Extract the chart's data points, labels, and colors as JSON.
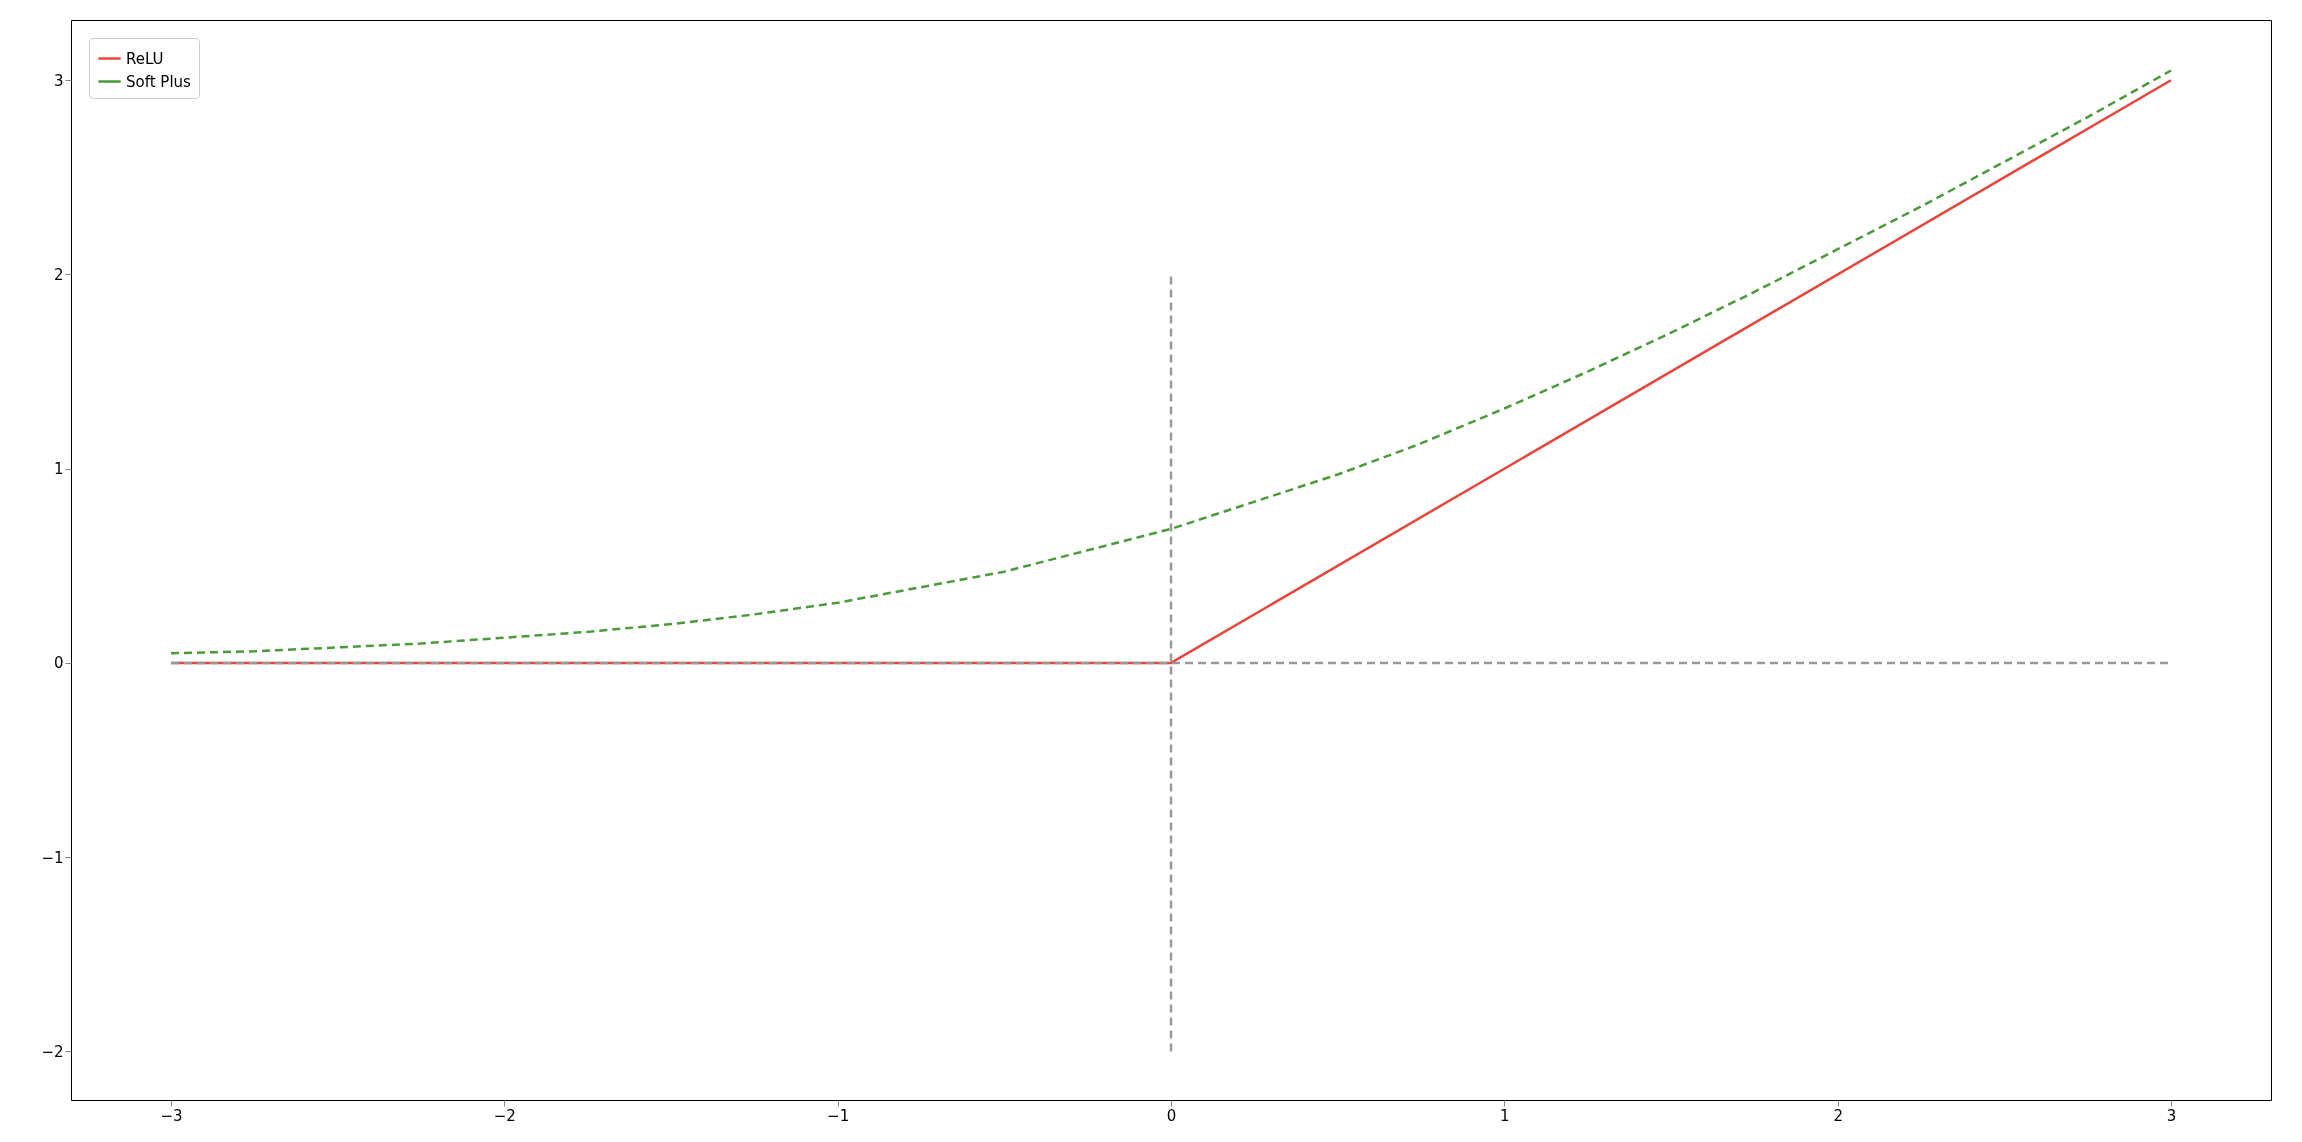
{
  "chart_data": {
    "type": "line",
    "xlim": [
      -3.3,
      3.3
    ],
    "ylim": [
      -2.25,
      3.31
    ],
    "xticks": [
      {
        "value": -3,
        "label": "−3"
      },
      {
        "value": -2,
        "label": "−2"
      },
      {
        "value": -1,
        "label": "−1"
      },
      0,
      1,
      2,
      3
    ],
    "yticks": [
      {
        "value": -2,
        "label": "−2"
      },
      {
        "value": -1,
        "label": "−1"
      },
      0,
      1,
      2,
      3
    ],
    "grid": false,
    "legend": "top left",
    "series": [
      {
        "name": "ReLU",
        "color": "#e8463c",
        "line_style": "solid",
        "x": [
          -3,
          0,
          3
        ],
        "values": [
          0,
          0,
          3
        ]
      },
      {
        "name": "Soft Plus",
        "color": "#4a9a3a",
        "line_style": "dashed",
        "x": [
          -3,
          -2.75,
          -2.5,
          -2.25,
          -2,
          -1.75,
          -1.5,
          -1.25,
          -1,
          -0.75,
          -0.5,
          -0.25,
          0,
          0.25,
          0.5,
          0.75,
          1,
          1.25,
          1.5,
          1.75,
          2,
          2.25,
          2.5,
          2.75,
          3
        ],
        "values": [
          0.05,
          0.06,
          0.08,
          0.1,
          0.13,
          0.16,
          0.2,
          0.25,
          0.31,
          0.39,
          0.47,
          0.58,
          0.69,
          0.83,
          0.97,
          1.13,
          1.31,
          1.5,
          1.7,
          1.91,
          2.13,
          2.35,
          2.58,
          2.81,
          3.05
        ]
      },
      {
        "color": "#999999",
        "line_style": "dashed",
        "x": [
          -3,
          3
        ],
        "values": [
          0,
          0
        ]
      },
      {
        "color": "#999999",
        "line_style": "dashed",
        "x": [
          0,
          0
        ],
        "values": [
          -2,
          2
        ]
      }
    ]
  }
}
